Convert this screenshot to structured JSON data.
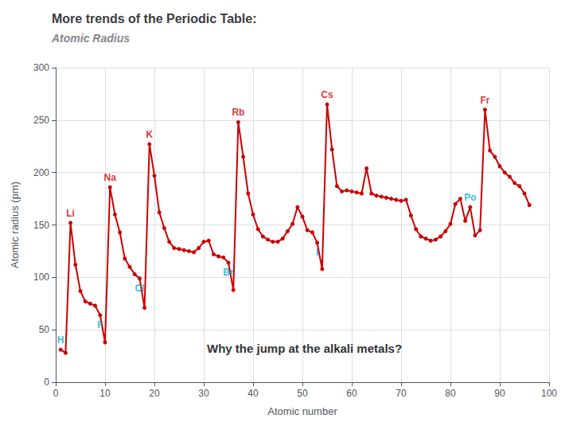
{
  "chart_data": {
    "type": "line",
    "title": "More trends of the Periodic Table:",
    "subtitle": "Atomic Radius",
    "xlabel": "Atomic number",
    "ylabel": "Atomic radius (pm)",
    "xlim": [
      0,
      100
    ],
    "ylim": [
      0,
      300
    ],
    "xticks": [
      0,
      10,
      20,
      30,
      40,
      50,
      60,
      70,
      80,
      90,
      100
    ],
    "yticks": [
      0,
      50,
      100,
      150,
      200,
      250,
      300
    ],
    "grid": true,
    "color": "#cc0000",
    "marker": "circle",
    "x": [
      1,
      2,
      3,
      4,
      5,
      6,
      7,
      8,
      9,
      10,
      11,
      12,
      13,
      14,
      15,
      16,
      17,
      18,
      19,
      20,
      21,
      22,
      23,
      24,
      25,
      26,
      27,
      28,
      29,
      30,
      31,
      32,
      33,
      34,
      35,
      36,
      37,
      38,
      39,
      40,
      41,
      42,
      43,
      44,
      45,
      46,
      47,
      48,
      49,
      50,
      51,
      52,
      53,
      54,
      55,
      56,
      57,
      58,
      59,
      60,
      61,
      62,
      63,
      64,
      65,
      66,
      67,
      68,
      69,
      70,
      71,
      72,
      73,
      74,
      75,
      76,
      77,
      78,
      79,
      80,
      81,
      82,
      83,
      84,
      85,
      86,
      87,
      88,
      89,
      90,
      91,
      92,
      93,
      94,
      95,
      96
    ],
    "values": [
      31,
      28,
      152,
      112,
      87,
      77,
      75,
      73,
      64,
      38,
      186,
      160,
      143,
      118,
      110,
      103,
      99,
      71,
      227,
      197,
      162,
      147,
      134,
      128,
      127,
      126,
      125,
      124,
      128,
      134,
      135,
      122,
      120,
      119,
      114,
      88,
      248,
      215,
      180,
      160,
      146,
      139,
      136,
      134,
      134,
      137,
      144,
      151,
      167,
      158,
      145,
      143,
      133,
      108,
      265,
      222,
      187,
      182,
      183,
      182,
      181,
      180,
      204,
      180,
      178,
      177,
      176,
      175,
      174,
      173,
      174,
      159,
      146,
      139,
      137,
      135,
      136,
      139,
      144,
      151,
      170,
      175,
      154,
      167,
      140,
      145,
      260,
      221,
      215,
      206,
      200,
      196,
      190,
      187,
      180,
      169
    ],
    "annotations": [
      {
        "text": "H",
        "x": 1,
        "y": 31,
        "color": "#00aacc"
      },
      {
        "text": "Li",
        "x": 3,
        "y": 152,
        "color": "#cc0000"
      },
      {
        "text": "F",
        "x": 9,
        "y": 64,
        "color": "#00aacc"
      },
      {
        "text": "Na",
        "x": 11,
        "y": 186,
        "color": "#cc0000"
      },
      {
        "text": "Cl",
        "x": 17,
        "y": 99,
        "color": "#00aacc"
      },
      {
        "text": "K",
        "x": 19,
        "y": 227,
        "color": "#cc0000"
      },
      {
        "text": "Br",
        "x": 35,
        "y": 114,
        "color": "#00aacc"
      },
      {
        "text": "Rb",
        "x": 37,
        "y": 248,
        "color": "#cc0000"
      },
      {
        "text": "I",
        "x": 53,
        "y": 133,
        "color": "#00aacc"
      },
      {
        "text": "Cs",
        "x": 55,
        "y": 265,
        "color": "#cc0000"
      },
      {
        "text": "Po",
        "x": 84,
        "y": 167,
        "color": "#00aacc"
      },
      {
        "text": "Fr",
        "x": 87,
        "y": 260,
        "color": "#cc0000"
      }
    ],
    "caption": "Why the jump at the alkali metals?"
  }
}
